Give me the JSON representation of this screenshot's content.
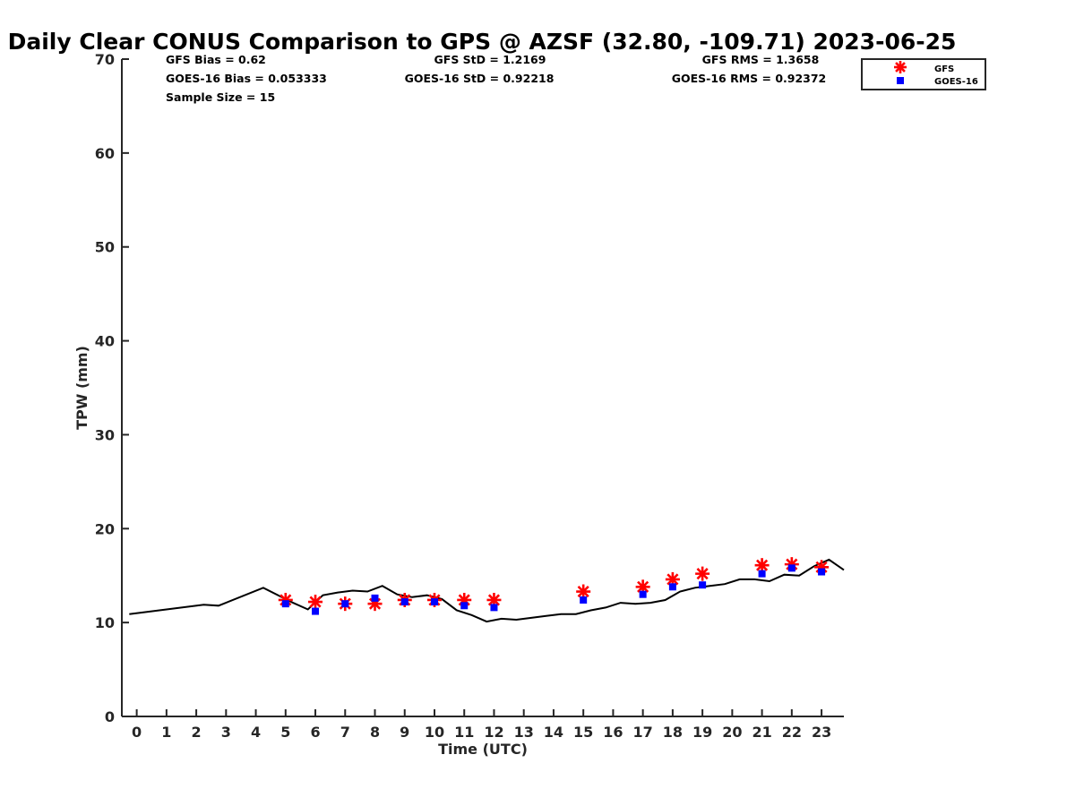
{
  "chart_data": {
    "type": "scatter",
    "title": "Daily Clear CONUS Comparison to GPS @ AZSF (32.80, -109.71) 2023-06-25",
    "xlabel": "Time (UTC)",
    "ylabel": "TPW (mm)",
    "xlim": [
      -0.5,
      23.75
    ],
    "ylim": [
      0,
      70
    ],
    "x_ticks": [
      "0",
      "1",
      "2",
      "3",
      "4",
      "5",
      "6",
      "7",
      "8",
      "9",
      "10",
      "11",
      "12",
      "13",
      "14",
      "15",
      "16",
      "17",
      "18",
      "19",
      "20",
      "21",
      "22",
      "23"
    ],
    "y_ticks": [
      "0",
      "10",
      "20",
      "30",
      "40",
      "50",
      "60",
      "70"
    ],
    "grid": false,
    "legend_position": "top-right",
    "stats": {
      "gfs_bias": "GFS Bias = 0.62",
      "goes_bias": "GOES-16 Bias = 0.053333",
      "sample_size": "Sample Size = 15",
      "gfs_std": "GFS StD = 1.2169",
      "goes_std": "GOES-16 StD = 0.92218",
      "gfs_rms": "GFS RMS = 1.3658",
      "goes_rms": "GOES-16 RMS = 0.92372"
    },
    "series": [
      {
        "name": "GFS",
        "marker": "asterisk",
        "color": "#ff0000",
        "x": [
          5,
          6,
          7,
          8,
          9,
          10,
          11,
          12,
          15,
          17,
          18,
          19,
          21,
          22,
          23
        ],
        "y": [
          12.4,
          12.2,
          12.0,
          12.0,
          12.4,
          12.4,
          12.4,
          12.4,
          13.3,
          13.8,
          14.6,
          15.2,
          16.1,
          16.2,
          15.9
        ]
      },
      {
        "name": "GOES-16",
        "marker": "square",
        "color": "#0000ff",
        "x": [
          5,
          6,
          7,
          8,
          9,
          10,
          11,
          12,
          15,
          17,
          18,
          19,
          21,
          22,
          23
        ],
        "y": [
          12.0,
          11.2,
          12.0,
          12.6,
          12.2,
          12.2,
          11.8,
          11.6,
          12.4,
          13.0,
          13.8,
          14.0,
          15.2,
          15.8,
          15.4
        ]
      },
      {
        "name": "",
        "marker": "line",
        "color": "#000000",
        "x": [
          -0.25,
          2.25,
          2.75,
          4.25,
          5.25,
          5.75,
          6.25,
          6.75,
          7.25,
          7.75,
          8.25,
          8.75,
          9.25,
          9.75,
          10.25,
          10.75,
          11.25,
          11.75,
          12.25,
          12.75,
          13.25,
          13.75,
          14.25,
          14.75,
          15.25,
          15.75,
          16.25,
          16.75,
          17.25,
          17.75,
          18.25,
          18.75,
          19.25,
          19.75,
          20.25,
          20.75,
          21.25,
          21.75,
          22.25,
          22.75,
          23.25,
          23.75
        ],
        "y": [
          10.9,
          11.9,
          11.8,
          13.7,
          12.1,
          11.4,
          12.9,
          13.2,
          13.4,
          13.3,
          13.9,
          13.0,
          12.7,
          12.9,
          12.5,
          11.3,
          10.8,
          10.1,
          10.4,
          10.3,
          10.5,
          10.7,
          10.9,
          10.9,
          11.3,
          11.6,
          12.1,
          12.0,
          12.1,
          12.4,
          13.3,
          13.7,
          13.9,
          14.1,
          14.6,
          14.6,
          14.4,
          15.1,
          15.0,
          16.0,
          16.7,
          15.6
        ]
      }
    ]
  }
}
